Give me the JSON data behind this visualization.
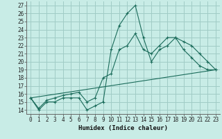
{
  "xlabel": "Humidex (Indice chaleur)",
  "background_color": "#c8ece6",
  "grid_color": "#a0ccc6",
  "line_color": "#1a6b5a",
  "xlim": [
    -0.5,
    23.5
  ],
  "ylim": [
    13.5,
    27.5
  ],
  "xticks": [
    0,
    1,
    2,
    3,
    4,
    5,
    6,
    7,
    8,
    9,
    10,
    11,
    12,
    13,
    14,
    15,
    16,
    17,
    18,
    19,
    20,
    21,
    22,
    23
  ],
  "yticks": [
    14,
    15,
    16,
    17,
    18,
    19,
    20,
    21,
    22,
    23,
    24,
    25,
    26,
    27
  ],
  "series1_x": [
    0,
    1,
    2,
    3,
    4,
    5,
    6,
    7,
    8,
    9,
    10,
    11,
    12,
    13,
    14,
    15,
    16,
    17,
    18,
    19,
    20,
    21,
    22,
    23
  ],
  "series1_y": [
    15.5,
    14.0,
    15.0,
    15.0,
    15.5,
    15.5,
    15.5,
    14.0,
    14.5,
    15.0,
    21.5,
    24.5,
    26.0,
    27.0,
    23.0,
    20.0,
    21.5,
    22.0,
    23.0,
    21.5,
    20.5,
    19.5,
    19.0,
    19.0
  ],
  "series2_x": [
    0,
    1,
    2,
    3,
    4,
    5,
    6,
    7,
    8,
    9,
    10,
    11,
    12,
    13,
    14,
    15,
    16,
    17,
    18,
    19,
    20,
    21,
    22,
    23
  ],
  "series2_y": [
    15.5,
    14.2,
    15.2,
    15.5,
    15.8,
    16.0,
    16.2,
    15.0,
    15.5,
    18.0,
    18.5,
    21.5,
    22.0,
    23.5,
    21.5,
    21.0,
    22.0,
    23.0,
    23.0,
    22.5,
    22.0,
    21.0,
    20.0,
    19.0
  ],
  "series3_x": [
    0,
    23
  ],
  "series3_y": [
    15.5,
    19.0
  ]
}
